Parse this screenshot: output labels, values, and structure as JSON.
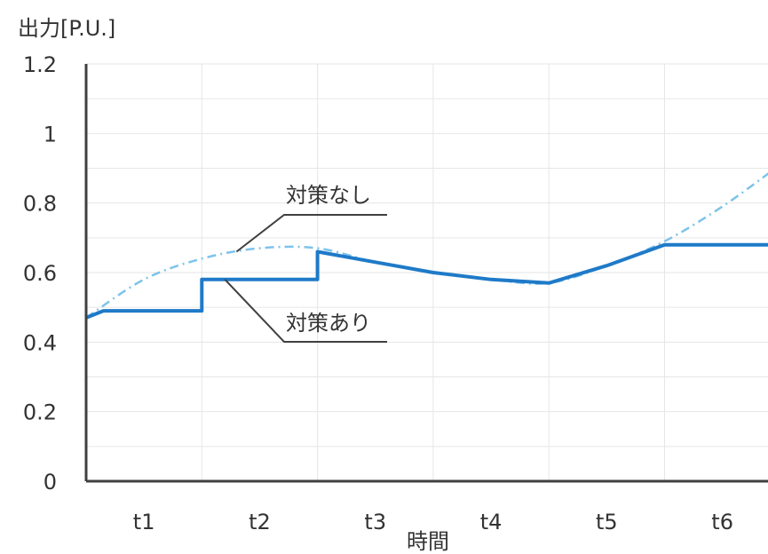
{
  "chart_data": {
    "type": "line",
    "title": "",
    "xlabel": "時間",
    "ylabel": "出力[P.U.]",
    "ylim": [
      0,
      1.2
    ],
    "y_ticks": [
      "0",
      "0.2",
      "0.4",
      "0.6",
      "0.8",
      "1",
      "1.2"
    ],
    "x_categories": [
      "t1",
      "t2",
      "t3",
      "t4",
      "t5",
      "t6"
    ],
    "xlim": [
      0,
      6
    ],
    "grid": true,
    "series": [
      {
        "name": "対策あり",
        "color": "#1f7ac8",
        "style": "solid",
        "x": [
          0,
          0.15,
          1.0,
          1.0,
          2.0,
          2.0,
          2.5,
          3.0,
          3.5,
          4.0,
          4.5,
          5.0,
          6.0
        ],
        "y": [
          0.47,
          0.49,
          0.49,
          0.58,
          0.58,
          0.66,
          0.63,
          0.6,
          0.58,
          0.57,
          0.62,
          0.68,
          0.68
        ]
      },
      {
        "name": "対策なし",
        "color": "#7ec3ea",
        "style": "dashdot",
        "x": [
          0,
          0.5,
          1.0,
          1.5,
          2.0,
          2.5,
          3.0,
          3.5,
          4.0,
          4.5,
          5.0,
          5.5,
          6.0
        ],
        "y": [
          0.47,
          0.58,
          0.64,
          0.67,
          0.67,
          0.63,
          0.6,
          0.58,
          0.57,
          0.62,
          0.69,
          0.79,
          0.91
        ]
      }
    ],
    "annotations": [
      {
        "text": "対策なし",
        "series": "対策なし",
        "at_x": 1.3
      },
      {
        "text": "対策あり",
        "series": "対策あり",
        "at_x": 1.2
      }
    ]
  }
}
